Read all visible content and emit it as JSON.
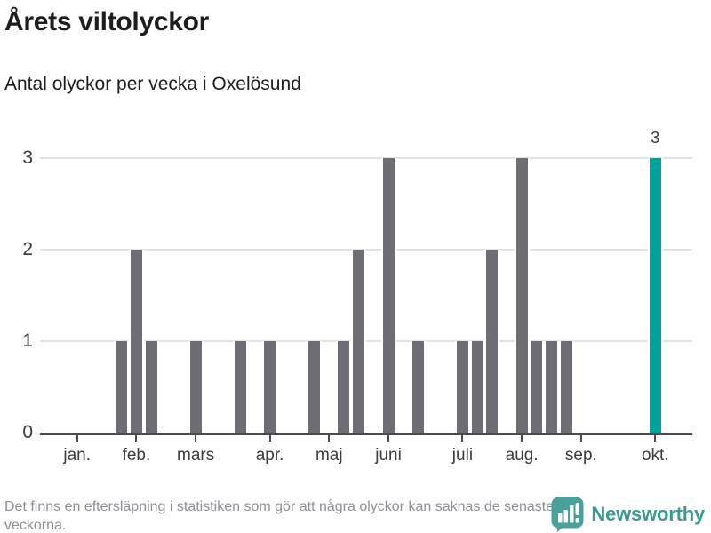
{
  "header": {
    "title": "Årets viltolyckor",
    "subtitle": "Antal olyckor per vecka i Oxelösund"
  },
  "chart_data": {
    "type": "bar",
    "title": "Årets viltolyckor",
    "subtitle": "Antal olyckor per vecka i Oxelösund",
    "x_unit": "week",
    "num_weeks": 44,
    "values": [
      0,
      0,
      0,
      0,
      0,
      1,
      2,
      1,
      0,
      0,
      1,
      0,
      0,
      1,
      0,
      1,
      0,
      0,
      1,
      0,
      1,
      2,
      0,
      3,
      0,
      1,
      0,
      0,
      1,
      1,
      2,
      0,
      3,
      1,
      1,
      1,
      0,
      0,
      0,
      0,
      0,
      3,
      0,
      0
    ],
    "highlight_week_index": 41,
    "highlight_value_label": "3",
    "month_ticks": [
      {
        "label": "jan.",
        "week_index": 2
      },
      {
        "label": "feb.",
        "week_index": 6
      },
      {
        "label": "mars",
        "week_index": 10
      },
      {
        "label": "apr.",
        "week_index": 15
      },
      {
        "label": "maj",
        "week_index": 19
      },
      {
        "label": "juni",
        "week_index": 23
      },
      {
        "label": "juli",
        "week_index": 28
      },
      {
        "label": "aug.",
        "week_index": 32
      },
      {
        "label": "sep.",
        "week_index": 36
      },
      {
        "label": "okt.",
        "week_index": 41
      }
    ],
    "yticks": [
      "0",
      "1",
      "2",
      "3"
    ],
    "ylim": [
      0,
      3
    ],
    "grid": "horizontal",
    "legend": "none",
    "colors": {
      "bar": "#6e6d73",
      "highlight": "#00a39b",
      "gridline": "#e3e3e3",
      "axis": "#4a4a4f"
    }
  },
  "footer": {
    "note": "Det finns en eftersläpning i statistiken som gör att några olyckor kan saknas de senaste veckorna.",
    "brand": "Newsworthy",
    "brand_color": "#3a9a94"
  }
}
